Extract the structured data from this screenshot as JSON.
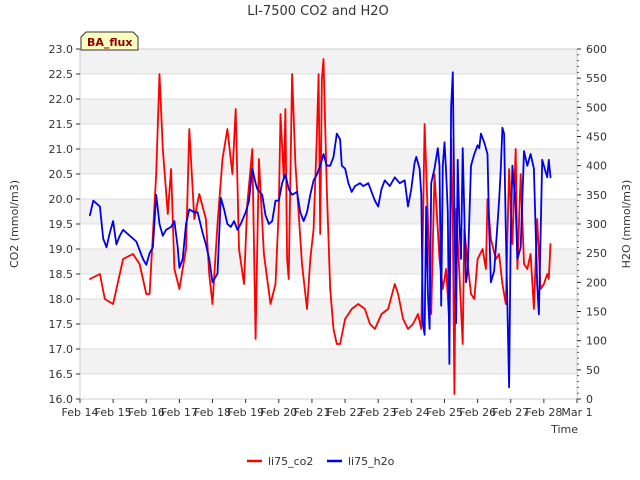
{
  "chart_data": {
    "type": "line",
    "title": "LI-7500 CO2 and H2O",
    "site_label": "BA_flux",
    "xlabel": "Time",
    "ylabel_left": "CO2 (mmol/m3)",
    "ylabel_right": "H2O (mmol/m3)",
    "ylim_left": [
      16.0,
      23.0
    ],
    "ylim_right": [
      0,
      600
    ],
    "y_ticks_left": [
      "16.0",
      "16.5",
      "17.0",
      "17.5",
      "18.0",
      "18.5",
      "19.0",
      "19.5",
      "20.0",
      "20.5",
      "21.0",
      "21.5",
      "22.0",
      "22.5",
      "23.0"
    ],
    "y_ticks_right": [
      "0",
      "50",
      "100",
      "150",
      "200",
      "250",
      "300",
      "350",
      "400",
      "450",
      "500",
      "550",
      "600"
    ],
    "x_tick_labels": [
      "Feb 14",
      "Feb 15",
      "Feb 16",
      "Feb 17",
      "Feb 18",
      "Feb 19",
      "Feb 20",
      "Feb 21",
      "Feb 22",
      "Feb 23",
      "Feb 24",
      "Feb 25",
      "Feb 26",
      "Feb 27",
      "Feb 28",
      "Mar 1"
    ],
    "xlim_days": [
      0,
      15
    ],
    "grid": true,
    "legend_position": "bottom-center",
    "series": [
      {
        "name": "li75_co2",
        "color": "#ff0000",
        "axis": "left",
        "points": [
          [
            0.3,
            18.4
          ],
          [
            0.6,
            18.5
          ],
          [
            0.75,
            18.0
          ],
          [
            1.0,
            17.9
          ],
          [
            1.3,
            18.8
          ],
          [
            1.6,
            18.9
          ],
          [
            1.8,
            18.7
          ],
          [
            2.0,
            18.1
          ],
          [
            2.1,
            18.1
          ],
          [
            2.3,
            20.5
          ],
          [
            2.4,
            22.5
          ],
          [
            2.5,
            21.0
          ],
          [
            2.65,
            19.7
          ],
          [
            2.75,
            20.6
          ],
          [
            2.85,
            18.6
          ],
          [
            3.0,
            18.2
          ],
          [
            3.2,
            19.0
          ],
          [
            3.3,
            21.4
          ],
          [
            3.45,
            19.6
          ],
          [
            3.6,
            20.1
          ],
          [
            3.8,
            19.6
          ],
          [
            3.9,
            18.5
          ],
          [
            4.0,
            17.9
          ],
          [
            4.15,
            19.5
          ],
          [
            4.3,
            20.8
          ],
          [
            4.45,
            21.4
          ],
          [
            4.6,
            20.5
          ],
          [
            4.7,
            21.8
          ],
          [
            4.8,
            19.0
          ],
          [
            4.95,
            18.3
          ],
          [
            5.05,
            19.9
          ],
          [
            5.2,
            21.0
          ],
          [
            5.3,
            17.2
          ],
          [
            5.4,
            20.8
          ],
          [
            5.55,
            18.9
          ],
          [
            5.75,
            17.9
          ],
          [
            5.9,
            18.3
          ],
          [
            6.0,
            19.8
          ],
          [
            6.05,
            21.7
          ],
          [
            6.15,
            20.4
          ],
          [
            6.2,
            21.8
          ],
          [
            6.25,
            18.8
          ],
          [
            6.3,
            18.4
          ],
          [
            6.4,
            22.5
          ],
          [
            6.5,
            20.7
          ],
          [
            6.7,
            18.7
          ],
          [
            6.85,
            17.8
          ],
          [
            6.95,
            18.8
          ],
          [
            7.05,
            19.4
          ],
          [
            7.15,
            21.3
          ],
          [
            7.2,
            22.5
          ],
          [
            7.25,
            19.3
          ],
          [
            7.3,
            22.4
          ],
          [
            7.35,
            22.8
          ],
          [
            7.45,
            20.2
          ],
          [
            7.55,
            18.2
          ],
          [
            7.65,
            17.4
          ],
          [
            7.75,
            17.1
          ],
          [
            7.85,
            17.1
          ],
          [
            8.0,
            17.6
          ],
          [
            8.2,
            17.8
          ],
          [
            8.4,
            17.9
          ],
          [
            8.6,
            17.8
          ],
          [
            8.75,
            17.5
          ],
          [
            8.9,
            17.4
          ],
          [
            9.1,
            17.7
          ],
          [
            9.3,
            17.8
          ],
          [
            9.5,
            18.3
          ],
          [
            9.6,
            18.1
          ],
          [
            9.75,
            17.6
          ],
          [
            9.9,
            17.4
          ],
          [
            10.05,
            17.5
          ],
          [
            10.2,
            17.7
          ],
          [
            10.3,
            17.4
          ],
          [
            10.4,
            21.5
          ],
          [
            10.5,
            19.6
          ],
          [
            10.6,
            17.7
          ],
          [
            10.7,
            20.5
          ],
          [
            10.85,
            18.8
          ],
          [
            10.95,
            18.2
          ],
          [
            11.05,
            18.6
          ],
          [
            11.15,
            17.5
          ],
          [
            11.2,
            21.2
          ],
          [
            11.25,
            19.6
          ],
          [
            11.3,
            16.1
          ],
          [
            11.35,
            19.8
          ],
          [
            11.45,
            18.5
          ],
          [
            11.55,
            17.1
          ],
          [
            11.6,
            19.4
          ],
          [
            11.7,
            18.7
          ],
          [
            11.8,
            18.1
          ],
          [
            11.9,
            18.0
          ],
          [
            12.0,
            18.8
          ],
          [
            12.15,
            19.0
          ],
          [
            12.25,
            18.6
          ],
          [
            12.3,
            20.0
          ],
          [
            12.4,
            19.2
          ],
          [
            12.55,
            18.8
          ],
          [
            12.65,
            18.9
          ],
          [
            12.75,
            18.3
          ],
          [
            12.85,
            17.9
          ],
          [
            12.95,
            20.6
          ],
          [
            13.05,
            19.1
          ],
          [
            13.15,
            21.0
          ],
          [
            13.2,
            18.6
          ],
          [
            13.3,
            20.5
          ],
          [
            13.4,
            18.7
          ],
          [
            13.5,
            18.6
          ],
          [
            13.6,
            18.9
          ],
          [
            13.7,
            17.8
          ],
          [
            13.8,
            19.6
          ],
          [
            13.9,
            18.2
          ],
          [
            14.0,
            18.3
          ],
          [
            14.1,
            18.5
          ],
          [
            14.15,
            18.4
          ],
          [
            14.2,
            19.1
          ]
        ]
      },
      {
        "name": "li75_h2o",
        "color": "#0000ee",
        "axis": "right",
        "points": [
          [
            0.3,
            315
          ],
          [
            0.4,
            340
          ],
          [
            0.6,
            330
          ],
          [
            0.7,
            275
          ],
          [
            0.8,
            260
          ],
          [
            0.9,
            285
          ],
          [
            1.0,
            305
          ],
          [
            1.1,
            265
          ],
          [
            1.2,
            280
          ],
          [
            1.3,
            290
          ],
          [
            1.5,
            280
          ],
          [
            1.7,
            270
          ],
          [
            1.9,
            240
          ],
          [
            2.0,
            230
          ],
          [
            2.1,
            250
          ],
          [
            2.2,
            260
          ],
          [
            2.3,
            350
          ],
          [
            2.4,
            300
          ],
          [
            2.5,
            280
          ],
          [
            2.6,
            290
          ],
          [
            2.75,
            295
          ],
          [
            2.85,
            305
          ],
          [
            2.95,
            260
          ],
          [
            3.0,
            225
          ],
          [
            3.1,
            240
          ],
          [
            3.2,
            300
          ],
          [
            3.3,
            325
          ],
          [
            3.45,
            320
          ],
          [
            3.55,
            320
          ],
          [
            3.7,
            285
          ],
          [
            3.8,
            265
          ],
          [
            3.9,
            240
          ],
          [
            4.0,
            200
          ],
          [
            4.15,
            215
          ],
          [
            4.25,
            345
          ],
          [
            4.35,
            325
          ],
          [
            4.45,
            300
          ],
          [
            4.55,
            295
          ],
          [
            4.65,
            305
          ],
          [
            4.75,
            290
          ],
          [
            4.85,
            300
          ],
          [
            5.0,
            320
          ],
          [
            5.1,
            340
          ],
          [
            5.2,
            395
          ],
          [
            5.3,
            370
          ],
          [
            5.35,
            360
          ],
          [
            5.5,
            350
          ],
          [
            5.6,
            315
          ],
          [
            5.7,
            300
          ],
          [
            5.8,
            305
          ],
          [
            5.9,
            340
          ],
          [
            6.0,
            340
          ],
          [
            6.1,
            370
          ],
          [
            6.2,
            385
          ],
          [
            6.3,
            360
          ],
          [
            6.4,
            350
          ],
          [
            6.55,
            355
          ],
          [
            6.65,
            320
          ],
          [
            6.75,
            305
          ],
          [
            6.85,
            320
          ],
          [
            6.95,
            350
          ],
          [
            7.05,
            375
          ],
          [
            7.15,
            385
          ],
          [
            7.25,
            400
          ],
          [
            7.35,
            420
          ],
          [
            7.45,
            400
          ],
          [
            7.55,
            400
          ],
          [
            7.65,
            415
          ],
          [
            7.75,
            455
          ],
          [
            7.85,
            445
          ],
          [
            7.9,
            400
          ],
          [
            8.0,
            395
          ],
          [
            8.1,
            370
          ],
          [
            8.2,
            355
          ],
          [
            8.3,
            365
          ],
          [
            8.45,
            370
          ],
          [
            8.55,
            365
          ],
          [
            8.7,
            370
          ],
          [
            8.8,
            355
          ],
          [
            8.9,
            340
          ],
          [
            9.0,
            330
          ],
          [
            9.1,
            360
          ],
          [
            9.2,
            375
          ],
          [
            9.35,
            365
          ],
          [
            9.5,
            380
          ],
          [
            9.65,
            370
          ],
          [
            9.8,
            375
          ],
          [
            9.9,
            330
          ],
          [
            10.0,
            360
          ],
          [
            10.1,
            405
          ],
          [
            10.15,
            415
          ],
          [
            10.25,
            395
          ],
          [
            10.3,
            350
          ],
          [
            10.35,
            130
          ],
          [
            10.4,
            110
          ],
          [
            10.45,
            330
          ],
          [
            10.5,
            180
          ],
          [
            10.55,
            120
          ],
          [
            10.6,
            370
          ],
          [
            10.7,
            395
          ],
          [
            10.8,
            430
          ],
          [
            10.85,
            400
          ],
          [
            10.9,
            160
          ],
          [
            10.95,
            400
          ],
          [
            11.0,
            440
          ],
          [
            11.05,
            390
          ],
          [
            11.1,
            320
          ],
          [
            11.15,
            60
          ],
          [
            11.2,
            500
          ],
          [
            11.25,
            560
          ],
          [
            11.3,
            320
          ],
          [
            11.35,
            130
          ],
          [
            11.4,
            410
          ],
          [
            11.45,
            300
          ],
          [
            11.5,
            240
          ],
          [
            11.55,
            430
          ],
          [
            11.65,
            200
          ],
          [
            11.7,
            220
          ],
          [
            11.8,
            400
          ],
          [
            11.9,
            420
          ],
          [
            12.0,
            435
          ],
          [
            12.05,
            430
          ],
          [
            12.1,
            455
          ],
          [
            12.2,
            440
          ],
          [
            12.3,
            420
          ],
          [
            12.35,
            290
          ],
          [
            12.4,
            200
          ],
          [
            12.5,
            220
          ],
          [
            12.6,
            300
          ],
          [
            12.65,
            340
          ],
          [
            12.7,
            395
          ],
          [
            12.75,
            465
          ],
          [
            12.8,
            455
          ],
          [
            12.85,
            290
          ],
          [
            12.95,
            20
          ],
          [
            13.0,
            280
          ],
          [
            13.05,
            400
          ],
          [
            13.15,
            330
          ],
          [
            13.2,
            240
          ],
          [
            13.3,
            260
          ],
          [
            13.4,
            425
          ],
          [
            13.5,
            400
          ],
          [
            13.6,
            420
          ],
          [
            13.7,
            395
          ],
          [
            13.8,
            195
          ],
          [
            13.85,
            145
          ],
          [
            13.95,
            410
          ],
          [
            14.05,
            390
          ],
          [
            14.1,
            380
          ],
          [
            14.15,
            410
          ],
          [
            14.2,
            380
          ]
        ]
      }
    ]
  }
}
